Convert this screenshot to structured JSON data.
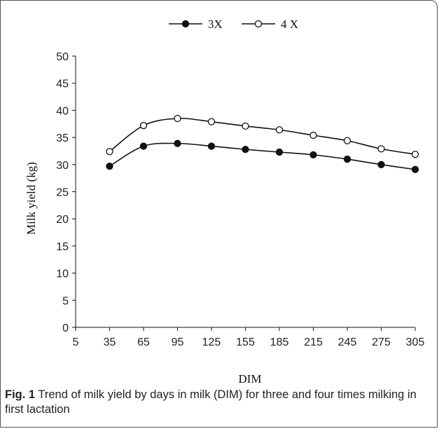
{
  "chart_data": {
    "type": "line",
    "xlabel": "DIM",
    "ylabel": "Milk yield (kg)",
    "x_ticks": [
      5,
      35,
      65,
      95,
      125,
      155,
      185,
      215,
      245,
      275,
      305
    ],
    "y_ticks": [
      0,
      5,
      10,
      15,
      20,
      25,
      30,
      35,
      40,
      45,
      50
    ],
    "xlim": [
      5,
      305
    ],
    "ylim": [
      0,
      50
    ],
    "grid": false,
    "legend_position": "top-center",
    "x": [
      35,
      65,
      95,
      125,
      155,
      185,
      215,
      245,
      275,
      305
    ],
    "series": [
      {
        "name": "3X",
        "marker": "filled-circle",
        "values": [
          29.7,
          33.4,
          33.9,
          33.4,
          32.8,
          32.3,
          31.8,
          31.0,
          30.0,
          29.1
        ]
      },
      {
        "name": "4 X",
        "marker": "open-circle",
        "values": [
          32.4,
          37.2,
          38.5,
          37.9,
          37.1,
          36.4,
          35.4,
          34.4,
          32.9,
          31.9
        ]
      }
    ],
    "colors": {
      "line": "#111111",
      "marker_fill_filled": "#111111",
      "marker_fill_open": "#ffffff"
    }
  },
  "caption": {
    "label": "Fig. 1",
    "text": "Trend of milk yield by days in milk (DIM) for three and four times milking in first lactation"
  }
}
